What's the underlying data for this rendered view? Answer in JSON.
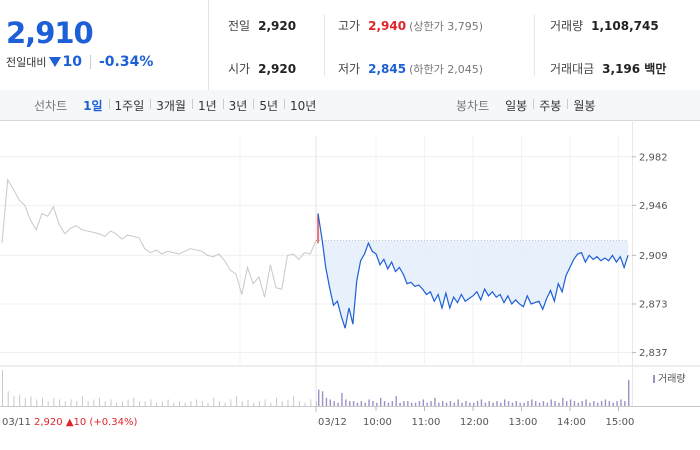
{
  "quote": {
    "price": "2,910",
    "change_label": "전일대비",
    "change_amount": "10",
    "change_pct": "-0.34%"
  },
  "stats": {
    "prev_close": {
      "label": "전일",
      "value": "2,920"
    },
    "open": {
      "label": "시가",
      "value": "2,920"
    },
    "high": {
      "label": "고가",
      "value": "2,940",
      "limit_label": "(상한가 3,795)"
    },
    "low": {
      "label": "저가",
      "value": "2,845",
      "limit_label": "(하한가 2,045)"
    },
    "volume": {
      "label": "거래량",
      "value": "1,108,745"
    },
    "amount": {
      "label": "거래대금",
      "value": "3,196 백만"
    }
  },
  "line_tabs": {
    "label": "선차트",
    "items": [
      "1일",
      "1주일",
      "3개월",
      "1년",
      "3년",
      "5년",
      "10년"
    ],
    "active": 0
  },
  "candle_tabs": {
    "label": "봉차트",
    "items": [
      "일봉",
      "주봉",
      "월봉"
    ]
  },
  "colors": {
    "accent": "#1d5fd6",
    "up": "#e0242b",
    "prev_line": "#c8c8c8",
    "fill": "#e4eefb"
  },
  "chart_data": {
    "type": "line",
    "ylim": [
      2830,
      2990
    ],
    "yticks": [
      2982,
      2946,
      2909,
      2873,
      2837
    ],
    "ytick_labels": [
      "2,982",
      "2,946",
      "2,909",
      "2,873",
      "2,837"
    ],
    "baseline": 2920,
    "prev_day": {
      "date": "03/11",
      "summary": {
        "date": "03/11",
        "close": "2,920",
        "change": "10",
        "pct": "(+0.34%)"
      },
      "values": [
        2918,
        2965,
        2958,
        2950,
        2946,
        2935,
        2928,
        2940,
        2938,
        2945,
        2932,
        2925,
        2929,
        2931,
        2928,
        2927,
        2926,
        2925,
        2923,
        2927,
        2925,
        2921,
        2924,
        2923,
        2922,
        2914,
        2911,
        2913,
        2910,
        2912,
        2911,
        2910,
        2912,
        2914,
        2913,
        2912,
        2909,
        2908,
        2910,
        2905,
        2898,
        2895,
        2880,
        2900,
        2888,
        2893,
        2878,
        2902,
        2885,
        2884,
        2909,
        2910,
        2906,
        2911,
        2910,
        2920
      ]
    },
    "today": {
      "date": "03/12",
      "x_labels": [
        "10:00",
        "11:00",
        "12:00",
        "13:00",
        "14:00",
        "15:00"
      ],
      "values": [
        2940,
        2922,
        2900,
        2885,
        2872,
        2875,
        2864,
        2855,
        2870,
        2858,
        2890,
        2905,
        2910,
        2918,
        2912,
        2910,
        2902,
        2906,
        2899,
        2904,
        2897,
        2900,
        2895,
        2888,
        2889,
        2886,
        2887,
        2884,
        2880,
        2882,
        2875,
        2880,
        2870,
        2881,
        2870,
        2878,
        2874,
        2880,
        2875,
        2877,
        2879,
        2882,
        2876,
        2884,
        2879,
        2882,
        2878,
        2880,
        2874,
        2879,
        2873,
        2876,
        2873,
        2871,
        2879,
        2873,
        2874,
        2875,
        2869,
        2877,
        2883,
        2875,
        2888,
        2882,
        2894,
        2900,
        2906,
        2910,
        2911,
        2904,
        2909,
        2906,
        2908,
        2905,
        2907,
        2905,
        2909,
        2904,
        2908,
        2900,
        2909
      ]
    },
    "volume": {
      "label": "거래량",
      "prev": [
        22,
        9,
        6,
        7,
        5,
        6,
        4,
        5,
        3,
        5,
        4,
        3,
        4,
        3,
        6,
        3,
        4,
        5,
        3,
        4,
        2,
        3,
        4,
        5,
        3,
        3,
        4,
        2,
        3,
        4,
        2,
        3,
        2,
        3,
        4,
        3,
        2,
        5,
        3,
        2,
        4,
        6,
        3,
        4,
        2,
        3,
        4,
        2,
        5,
        3,
        4,
        6,
        3,
        2,
        4,
        3
      ],
      "today": [
        10,
        9,
        5,
        4,
        3,
        2,
        8,
        4,
        3,
        3,
        2,
        3,
        2,
        4,
        3,
        2,
        5,
        3,
        2,
        3,
        6,
        2,
        3,
        3,
        2,
        2,
        3,
        4,
        2,
        3,
        5,
        2,
        3,
        2,
        3,
        2,
        4,
        2,
        3,
        2,
        2,
        3,
        4,
        2,
        3,
        2,
        3,
        2,
        4,
        3,
        2,
        3,
        2,
        2,
        3,
        4,
        3,
        2,
        3,
        2,
        4,
        3,
        2,
        5,
        3,
        4,
        3,
        2,
        3,
        4,
        2,
        3,
        2,
        3,
        4,
        3,
        2,
        3,
        4,
        3,
        16
      ]
    }
  }
}
